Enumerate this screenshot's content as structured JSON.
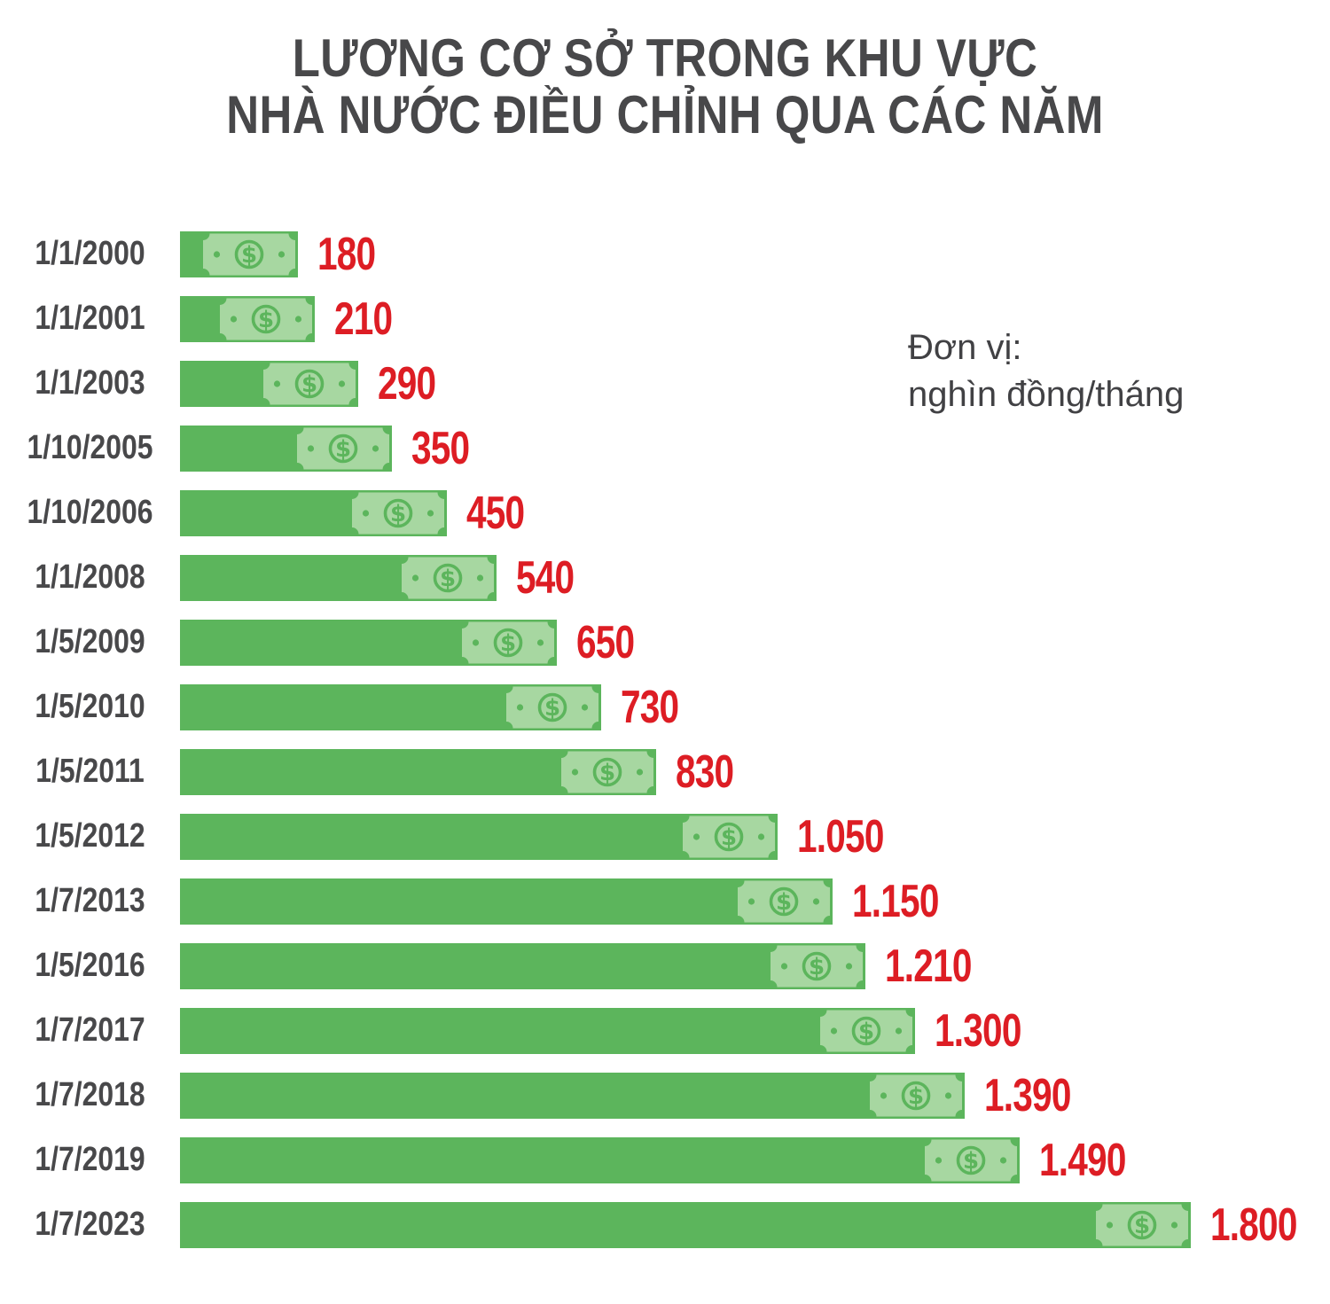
{
  "title": {
    "line1": "LƯƠNG CƠ SỞ TRONG KHU VỰC",
    "line2": "NHÀ NƯỚC ĐIỀU CHỈNH QUA CÁC NĂM"
  },
  "unit_note": {
    "line1": "Đơn vị:",
    "line2": "nghìn đồng/tháng"
  },
  "colors": {
    "bar_green": "#5cb55c",
    "bill_green": "#a7d7a1",
    "value_red": "#dd1d24",
    "text_dark": "#48484a"
  },
  "chart_data": {
    "type": "bar",
    "orientation": "horizontal",
    "title": "LƯƠNG CƠ SỞ TRONG KHU VỰC NHÀ NƯỚC ĐIỀU CHỈNH QUA CÁC NĂM",
    "unit": "nghìn đồng/tháng",
    "categories": [
      "1/1/2000",
      "1/1/2001",
      "1/1/2003",
      "1/10/2005",
      "1/10/2006",
      "1/1/2008",
      "1/5/2009",
      "1/5/2010",
      "1/5/2011",
      "1/5/2012",
      "1/7/2013",
      "1/5/2016",
      "1/7/2017",
      "1/7/2018",
      "1/7/2019",
      "1/7/2023"
    ],
    "values": [
      180,
      210,
      290,
      350,
      450,
      540,
      650,
      730,
      830,
      1050,
      1150,
      1210,
      1300,
      1390,
      1490,
      1800
    ],
    "value_labels": [
      "180",
      "210",
      "290",
      "350",
      "450",
      "540",
      "650",
      "730",
      "830",
      "1.050",
      "1.150",
      "1.210",
      "1.300",
      "1.390",
      "1.490",
      "1.800"
    ],
    "xlim": [
      0,
      1800
    ],
    "grid": false,
    "axes_visible": false,
    "legend_position": "none",
    "value_label_position": "right-of-bar",
    "bar_color": "#5cb55c",
    "value_label_color": "#dd1d24",
    "bar_icon": "dollar-bill-icon"
  }
}
